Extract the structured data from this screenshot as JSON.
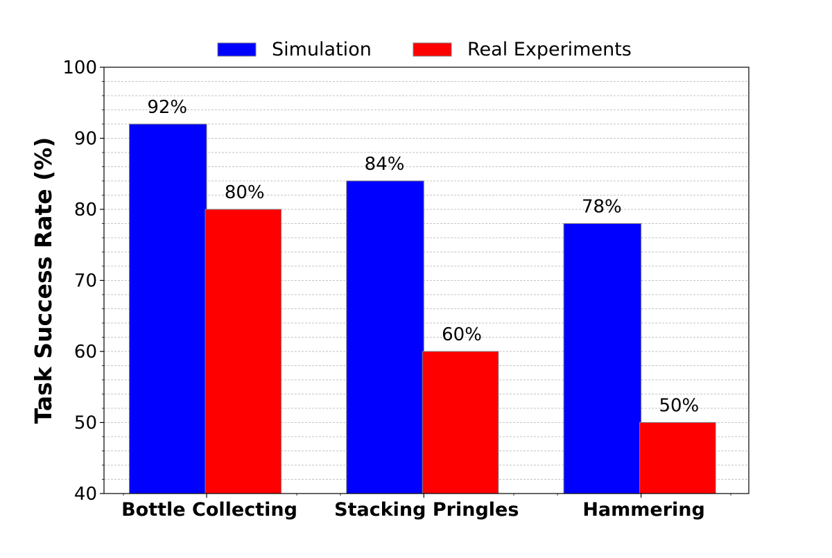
{
  "chart_data": {
    "type": "bar",
    "title": "",
    "xlabel": "",
    "ylabel": "Task Success Rate (%)",
    "ylim": [
      40,
      100
    ],
    "yticks": [
      40,
      50,
      60,
      70,
      80,
      90,
      100
    ],
    "minor_grid_step": 2,
    "grid": true,
    "legend_position": "top-center",
    "categories": [
      "Bottle Collecting",
      "Stacking Pringles",
      "Hammering"
    ],
    "series": [
      {
        "name": "Simulation",
        "color": "#0000ff",
        "values": [
          92,
          84,
          78
        ],
        "labels": [
          "92%",
          "84%",
          "78%"
        ]
      },
      {
        "name": "Real Experiments",
        "color": "#ff0000",
        "values": [
          80,
          60,
          50
        ],
        "labels": [
          "80%",
          "60%",
          "50%"
        ]
      }
    ]
  }
}
